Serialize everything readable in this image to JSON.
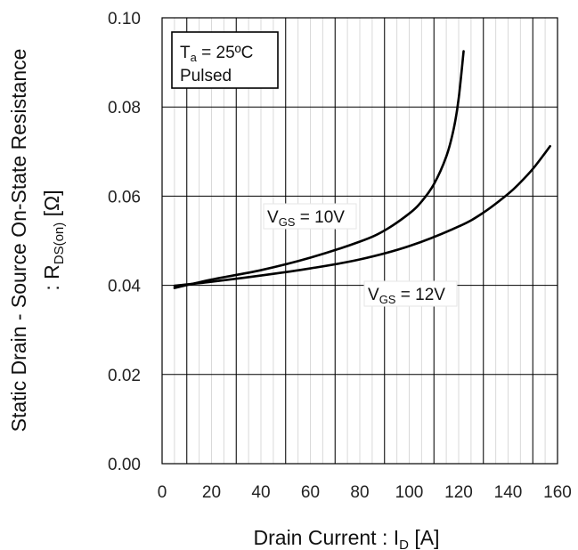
{
  "chart_data": {
    "type": "line",
    "title": "",
    "xlabel": {
      "main": "Drain Current : I",
      "sub": "D",
      "unit": " [A]"
    },
    "ylabel": {
      "line1": "Static Drain - Source On-State Resistance",
      "line2_main": ": R",
      "line2_sub": "DS(on)",
      "line2_unit": " [Ω]"
    },
    "xlim": [
      0,
      160
    ],
    "ylim": [
      0,
      0.1
    ],
    "x_ticks": [
      "0",
      "20",
      "40",
      "60",
      "80",
      "100",
      "120",
      "140",
      "160"
    ],
    "y_ticks": [
      "0.00",
      "0.02",
      "0.04",
      "0.06",
      "0.08",
      "0.10"
    ],
    "x_tick_values": [
      0,
      20,
      40,
      60,
      80,
      100,
      120,
      140,
      160
    ],
    "y_tick_values": [
      0,
      0.02,
      0.04,
      0.06,
      0.08,
      0.1
    ],
    "grid": true,
    "conditions": {
      "ta_main": "T",
      "ta_sub": "a",
      "ta_rest": " = 25ºC",
      "mode": "Pulsed"
    },
    "series": [
      {
        "name": "VGS = 10V",
        "label_main": "V",
        "label_sub": "GS",
        "label_rest": " = 10V",
        "x": [
          5,
          20,
          40,
          60,
          80,
          90,
          100,
          105,
          110,
          115,
          118,
          120,
          122
        ],
        "y": [
          0.0394,
          0.0413,
          0.0434,
          0.0462,
          0.0498,
          0.0523,
          0.0561,
          0.0588,
          0.0627,
          0.0689,
          0.0751,
          0.0819,
          0.0925
        ]
      },
      {
        "name": "VGS = 12V",
        "label_main": "V",
        "label_sub": "GS",
        "label_rest": " = 12V",
        "x": [
          5,
          20,
          40,
          60,
          80,
          100,
          120,
          130,
          140,
          145,
          150,
          155,
          157
        ],
        "y": [
          0.0399,
          0.0408,
          0.0422,
          0.0438,
          0.0458,
          0.0488,
          0.0532,
          0.0563,
          0.0605,
          0.0631,
          0.0661,
          0.0697,
          0.0712
        ]
      }
    ]
  }
}
